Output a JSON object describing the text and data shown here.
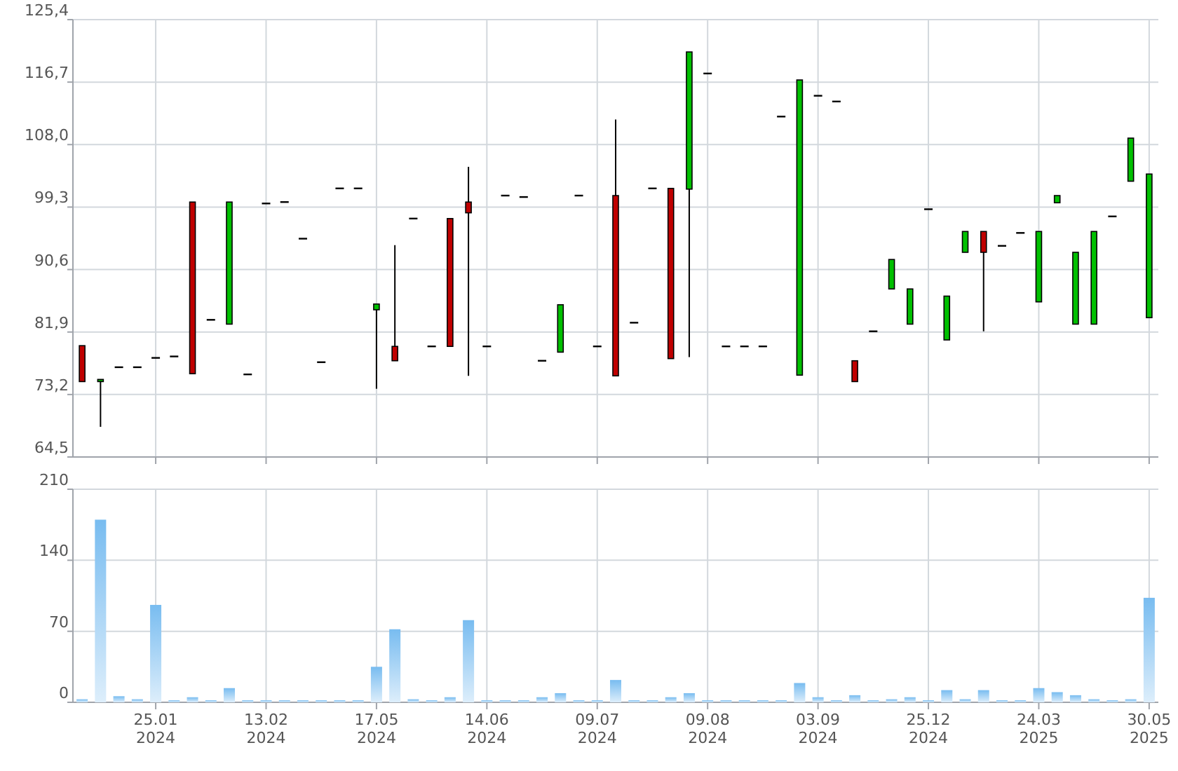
{
  "chart_data": [
    {
      "type": "candlestick",
      "categories": [
        null,
        null,
        null,
        null,
        null,
        null,
        null,
        null,
        null,
        null,
        null,
        null,
        null,
        null,
        null,
        null,
        null,
        null,
        null,
        null,
        null,
        null,
        null,
        null,
        null,
        null,
        null,
        null,
        null,
        null,
        null,
        null,
        null,
        null,
        null,
        null,
        null,
        null,
        null,
        null,
        null,
        null,
        null,
        null,
        null,
        null,
        null,
        null,
        null,
        null,
        null,
        null,
        null,
        null,
        null,
        null,
        null,
        null,
        null
      ],
      "ohlc": [
        [
          80.0,
          80.0,
          75.0,
          75.0
        ],
        [
          75.0,
          75.3,
          68.7,
          75.3
        ],
        [
          77.0,
          77.0,
          77.0,
          77.0
        ],
        [
          77.0,
          77.0,
          77.0,
          77.0
        ],
        [
          78.3,
          78.3,
          78.3,
          78.3
        ],
        [
          78.5,
          78.5,
          78.5,
          78.5
        ],
        [
          100.0,
          100.0,
          76.1,
          76.1
        ],
        [
          83.6,
          83.6,
          83.6,
          83.6
        ],
        [
          83.0,
          100.0,
          83.0,
          100.0
        ],
        [
          76.0,
          76.0,
          76.0,
          76.0
        ],
        [
          99.8,
          99.8,
          99.8,
          99.8
        ],
        [
          100.0,
          100.0,
          100.0,
          100.0
        ],
        [
          94.9,
          94.9,
          94.9,
          94.9
        ],
        [
          77.7,
          77.7,
          77.7,
          77.7
        ],
        [
          101.9,
          101.9,
          101.9,
          101.9
        ],
        [
          101.9,
          101.9,
          101.9,
          101.9
        ],
        [
          85.0,
          85.8,
          74.0,
          85.8
        ],
        [
          79.9,
          94.0,
          77.9,
          77.9
        ],
        [
          97.7,
          97.7,
          97.7,
          97.7
        ],
        [
          79.9,
          79.9,
          79.9,
          79.9
        ],
        [
          97.7,
          97.7,
          79.9,
          79.9
        ],
        [
          100.0,
          104.9,
          75.8,
          98.5
        ],
        [
          79.9,
          79.9,
          79.9,
          79.9
        ],
        [
          100.9,
          100.9,
          100.9,
          100.9
        ],
        [
          100.7,
          100.7,
          100.7,
          100.7
        ],
        [
          77.9,
          77.9,
          77.9,
          77.9
        ],
        [
          79.1,
          85.7,
          79.1,
          85.7
        ],
        [
          100.9,
          100.9,
          100.9,
          100.9
        ],
        [
          79.9,
          79.9,
          79.9,
          79.9
        ],
        [
          100.9,
          111.5,
          75.8,
          75.8
        ],
        [
          83.2,
          83.2,
          83.2,
          83.2
        ],
        [
          101.9,
          101.9,
          101.9,
          101.9
        ],
        [
          101.9,
          101.9,
          78.2,
          78.2
        ],
        [
          101.8,
          120.9,
          78.4,
          120.9
        ],
        [
          117.9,
          117.9,
          117.9,
          117.9
        ],
        [
          79.9,
          79.9,
          79.9,
          79.9
        ],
        [
          79.9,
          79.9,
          79.9,
          79.9
        ],
        [
          79.9,
          79.9,
          79.9,
          79.9
        ],
        [
          111.9,
          111.9,
          111.9,
          111.9
        ],
        [
          75.9,
          117.0,
          75.9,
          117.0
        ],
        [
          114.8,
          114.8,
          114.8,
          114.8
        ],
        [
          114.0,
          114.0,
          114.0,
          114.0
        ],
        [
          77.9,
          77.9,
          75.0,
          75.0
        ],
        [
          82.0,
          82.0,
          82.0,
          82.0
        ],
        [
          87.9,
          92.0,
          87.9,
          92.0
        ],
        [
          83.0,
          87.9,
          83.0,
          87.9
        ],
        [
          99.0,
          99.0,
          99.0,
          99.0
        ],
        [
          80.8,
          86.9,
          80.8,
          86.9
        ],
        [
          93.0,
          95.9,
          93.0,
          95.9
        ],
        [
          95.9,
          95.9,
          82.0,
          93.0
        ],
        [
          93.9,
          93.9,
          93.9,
          93.9
        ],
        [
          95.7,
          95.7,
          95.7,
          95.7
        ],
        [
          86.1,
          95.9,
          86.1,
          95.9
        ],
        [
          99.9,
          100.9,
          99.9,
          100.9
        ],
        [
          83.0,
          93.0,
          83.0,
          93.0
        ],
        [
          83.0,
          95.9,
          83.0,
          95.9
        ],
        [
          98.0,
          98.0,
          98.0,
          98.0
        ],
        [
          102.9,
          108.9,
          102.9,
          108.9
        ],
        [
          83.9,
          103.9,
          83.9,
          103.9
        ]
      ],
      "colors": [
        "#c00000",
        "#00c000",
        "#000000",
        "#000000",
        "#000000",
        "#000000",
        "#c00000",
        "#000000",
        "#00c000",
        "#000000",
        "#000000",
        "#000000",
        "#000000",
        "#000000",
        "#000000",
        "#000000",
        "#00c000",
        "#c00000",
        "#000000",
        "#000000",
        "#c00000",
        "#c00000",
        "#000000",
        "#000000",
        "#000000",
        "#000000",
        "#00c000",
        "#000000",
        "#000000",
        "#c00000",
        "#000000",
        "#000000",
        "#c00000",
        "#00c000",
        "#000000",
        "#000000",
        "#000000",
        "#000000",
        "#000000",
        "#00c000",
        "#000000",
        "#000000",
        "#c00000",
        "#000000",
        "#00c000",
        "#00c000",
        "#000000",
        "#00c000",
        "#00c000",
        "#c00000",
        "#000000",
        "#000000",
        "#00c000",
        "#00c000",
        "#00c000",
        "#00c000",
        "#000000",
        "#00c000",
        "#00c000"
      ],
      "ylim": [
        64.5,
        125.4
      ],
      "yticks": [
        {
          "value": 64.5,
          "label": "64,5"
        },
        {
          "value": 73.2,
          "label": "73,2"
        },
        {
          "value": 81.9,
          "label": "81,9"
        },
        {
          "value": 90.6,
          "label": "90,6"
        },
        {
          "value": 99.3,
          "label": "99,3"
        },
        {
          "value": 108.0,
          "label": "108,0"
        },
        {
          "value": 116.7,
          "label": "116,7"
        },
        {
          "value": 125.4,
          "label": "125,4"
        }
      ],
      "grid": true,
      "tick_labels": "y"
    },
    {
      "type": "bar",
      "categories": [
        null,
        null,
        null,
        null,
        "25.01\n2024",
        null,
        null,
        null,
        null,
        null,
        "13.02\n2024",
        null,
        null,
        null,
        null,
        null,
        "17.05\n2024",
        null,
        null,
        null,
        null,
        null,
        "14.06\n2024",
        null,
        null,
        null,
        null,
        null,
        "09.07\n2024",
        null,
        null,
        null,
        null,
        null,
        "09.08\n2024",
        null,
        null,
        null,
        null,
        null,
        "03.09\n2024",
        null,
        null,
        null,
        null,
        null,
        "25.12\n2024",
        null,
        null,
        null,
        null,
        null,
        "24.03\n2025",
        null,
        null,
        null,
        null,
        null,
        "30.05\n2025"
      ],
      "values": [
        3,
        180,
        6,
        3,
        96,
        2,
        5,
        2,
        14,
        2,
        2,
        2,
        2,
        2,
        2,
        2,
        35,
        72,
        3,
        2,
        5,
        81,
        2,
        2,
        2,
        5,
        9,
        2,
        2,
        22,
        2,
        2,
        5,
        9,
        2,
        2,
        2,
        2,
        2,
        19,
        5,
        2,
        7,
        2,
        3,
        5,
        2,
        12,
        3,
        12,
        2,
        2,
        14,
        10,
        7,
        3,
        2,
        3,
        103
      ],
      "color": "#78bcf0",
      "ylim": [
        0,
        210
      ],
      "yticks": [
        0,
        70,
        140,
        210
      ],
      "grid": true
    }
  ]
}
